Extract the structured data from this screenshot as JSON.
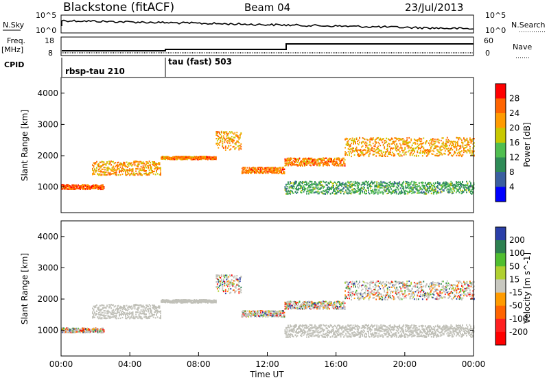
{
  "header": {
    "station": "Blackstone (fitACF)",
    "beam": "Beam 04",
    "date": "23/Jul/2013"
  },
  "top_panels": {
    "nsky_label": "N.Sky",
    "nsky_ticks": [
      "10^5",
      "10^0"
    ],
    "nsearch_label": "N.Search",
    "nsearch_ticks": [
      "10^5",
      "10^0"
    ],
    "freq_label_1": "Freq.",
    "freq_label_2": "[MHz]",
    "freq_ticks": [
      "18",
      "8"
    ],
    "nave_label": "Nave",
    "nave_ticks": [
      "60",
      "0"
    ],
    "cpid_label": "CPID",
    "cpid_segments": [
      {
        "label": "rbsp-tau 210",
        "start_hour": 0
      },
      {
        "label": "tau (fast) 503",
        "start_hour": 6
      }
    ]
  },
  "chart_data": [
    {
      "type": "heatmap",
      "title": "",
      "ylabel": "Slant Range [km]",
      "xlabel": "",
      "xlim": [
        0,
        24
      ],
      "ylim": [
        180,
        4500
      ],
      "yticks": [
        "1000",
        "2000",
        "3000",
        "4000"
      ],
      "colorbar_label": "Power [dB]",
      "colorbar_ticks": [
        "28",
        "24",
        "20",
        "16",
        "12",
        "8",
        "4"
      ],
      "colorbar_colors": [
        "#ff0000",
        "#ff6400",
        "#ff9b00",
        "#c8c800",
        "#50be50",
        "#2e8b57",
        "#3a5fa0",
        "#0000ff"
      ],
      "echo_bands": [
        {
          "start_hour": 0.0,
          "end_hour": 2.5,
          "range_km": [
            950,
            1100
          ],
          "power_db": 24
        },
        {
          "start_hour": 1.8,
          "end_hour": 5.8,
          "range_km": [
            1400,
            1850
          ],
          "power_db": 20
        },
        {
          "start_hour": 5.8,
          "end_hour": 9.0,
          "range_km": [
            1900,
            2000
          ],
          "power_db": 22
        },
        {
          "start_hour": 9.0,
          "end_hour": 10.5,
          "range_km": [
            2200,
            2800
          ],
          "power_db": 20
        },
        {
          "start_hour": 10.5,
          "end_hour": 13.0,
          "range_km": [
            1450,
            1650
          ],
          "power_db": 22
        },
        {
          "start_hour": 13.0,
          "end_hour": 16.5,
          "range_km": [
            1700,
            1950
          ],
          "power_db": 22
        },
        {
          "start_hour": 16.5,
          "end_hour": 24.0,
          "range_km": [
            2000,
            2600
          ],
          "power_db": 20
        },
        {
          "start_hour": 13.0,
          "end_hour": 24.0,
          "range_km": [
            800,
            1200
          ],
          "power_db": 10
        }
      ]
    },
    {
      "type": "heatmap",
      "title": "",
      "ylabel": "Slant Range [km]",
      "xlabel": "Time UT",
      "xlim": [
        0,
        24
      ],
      "ylim": [
        180,
        4500
      ],
      "xticks": [
        "00:00",
        "04:00",
        "08:00",
        "12:00",
        "16:00",
        "20:00",
        "00:00"
      ],
      "yticks": [
        "1000",
        "2000",
        "3000",
        "4000"
      ],
      "colorbar_label": "Velocity [m s^-1]",
      "colorbar_ticks": [
        "200",
        "100",
        "50",
        "15",
        "-15",
        "-50",
        "-100",
        "-200"
      ],
      "colorbar_colors": [
        "#2a3fa8",
        "#2d8050",
        "#50be30",
        "#b0d030",
        "#c8c8c0",
        "#ff9b00",
        "#ff6400",
        "#ff2020",
        "#ff0000"
      ],
      "ground_scatter_color": "#c0c0b8"
    }
  ]
}
